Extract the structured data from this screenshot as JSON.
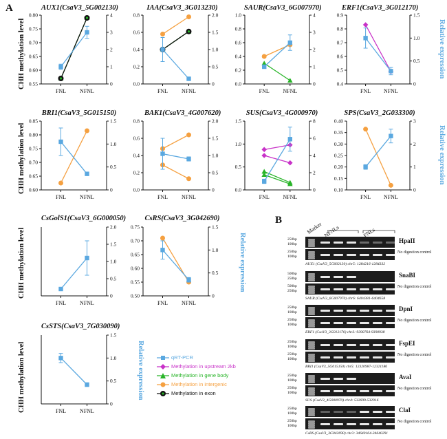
{
  "figure": {
    "panel_a_label": "A",
    "panel_b_label": "B",
    "left_axis_label": "CHH methylation level",
    "right_axis_label": "Relative expression"
  },
  "colors": {
    "qrt": "#5aa8e0",
    "upstream": "#c832c8",
    "genebody": "#28b428",
    "intergenic": "#f5a040",
    "exon": "#111111"
  },
  "legend": [
    {
      "key": "qrt",
      "label": "qRT-PCR",
      "marker": "square"
    },
    {
      "key": "upstream",
      "label": "Methylation in  upstream 2kb",
      "marker": "diamond"
    },
    {
      "key": "genebody",
      "label": "Methylation in gene body",
      "marker": "triangle"
    },
    {
      "key": "intergenic",
      "label": "Methylation in  intergenic",
      "marker": "circle"
    },
    {
      "key": "exon",
      "label": "Methylation in exon",
      "marker": "hexagon"
    }
  ],
  "chart_data": [
    {
      "type": "line",
      "title": "AUX1(CsaV3_5G002130)",
      "categories": [
        "FNL",
        "NFNL"
      ],
      "ylim": [
        0.55,
        0.8
      ],
      "yticks": [
        "0.55",
        "0.60",
        "0.65",
        "0.70",
        "0.75",
        "0.80"
      ],
      "y2lim": [
        0,
        4
      ],
      "y2ticks": [
        "0",
        "1",
        "2",
        "3",
        "4"
      ],
      "methylation": [
        {
          "key": "genebody",
          "values": [
            0.57,
            0.79
          ]
        },
        {
          "key": "exon",
          "values": [
            0.57,
            0.79
          ]
        }
      ],
      "expression": {
        "values": [
          1.0,
          3.0
        ],
        "err": [
          0.15,
          0.35
        ]
      }
    },
    {
      "type": "line",
      "title": "IAA(CsaV3_3G013230)",
      "categories": [
        "FNL",
        "NFNL"
      ],
      "ylim": [
        0,
        0.8
      ],
      "yticks": [
        "0.0",
        "0.2",
        "0.4",
        "0.6",
        "0.8"
      ],
      "y2lim": [
        0,
        2
      ],
      "y2ticks": [
        "0",
        "0.5",
        "1.0",
        "1.5",
        "2.0"
      ],
      "methylation": [
        {
          "key": "intergenic",
          "values": [
            0.58,
            0.78
          ]
        },
        {
          "key": "genebody",
          "values": [
            0.4,
            0.61
          ]
        },
        {
          "key": "exon",
          "values": [
            0.4,
            0.61
          ]
        }
      ],
      "expression": {
        "values": [
          1.0,
          0.15
        ],
        "err": [
          0.35,
          0.05
        ]
      }
    },
    {
      "type": "line",
      "title": "SAUR(CsaV3_6G007970)",
      "categories": [
        "FNL",
        "NFNL"
      ],
      "ylim": [
        0,
        1
      ],
      "yticks": [
        "0.0",
        "0.2",
        "0.4",
        "0.6",
        "0.8",
        "1.0"
      ],
      "y2lim": [
        0,
        4
      ],
      "y2ticks": [
        "0",
        "1",
        "2",
        "3",
        "4"
      ],
      "methylation": [
        {
          "key": "intergenic",
          "values": [
            0.4,
            0.57
          ]
        },
        {
          "key": "genebody",
          "values": [
            0.3,
            0.05
          ]
        }
      ],
      "expression": {
        "values": [
          1.0,
          2.4
        ],
        "err": [
          0.1,
          0.45
        ]
      }
    },
    {
      "type": "line",
      "title": "ERF1(CsaV3_3G012170)",
      "categories": [
        "FNL",
        "NFNL"
      ],
      "ylim": [
        0.4,
        0.9
      ],
      "yticks": [
        "0.4",
        "0.5",
        "0.6",
        "0.7",
        "0.8",
        "0.9"
      ],
      "y2lim": [
        0,
        1.5
      ],
      "y2ticks": [
        "0",
        "0.5",
        "1.0",
        "1.5"
      ],
      "methylation": [
        {
          "key": "upstream",
          "values": [
            0.83,
            0.49
          ]
        }
      ],
      "expression": {
        "values": [
          1.0,
          0.28
        ],
        "err": [
          0.22,
          0.08
        ]
      }
    },
    {
      "type": "line",
      "title": "BRI1(CsaV3_5G015150)",
      "categories": [
        "FNL",
        "NFNL"
      ],
      "ylim": [
        0.6,
        0.85
      ],
      "yticks": [
        "0.60",
        "0.65",
        "0.70",
        "0.75",
        "0.80",
        "0.85"
      ],
      "y2lim": [
        0,
        1.5
      ],
      "y2ticks": [
        "0",
        "0.5",
        "1.0",
        "1.5"
      ],
      "methylation": [
        {
          "key": "intergenic",
          "values": [
            0.625,
            0.815
          ]
        }
      ],
      "expression": {
        "values": [
          1.05,
          0.35
        ],
        "err": [
          0.3,
          0.03
        ]
      }
    },
    {
      "type": "line",
      "title": "BAK1(CsaV3_4G007620)",
      "categories": [
        "FNL",
        "NFNL"
      ],
      "ylim": [
        0,
        0.8
      ],
      "yticks": [
        "0.0",
        "0.2",
        "0.4",
        "0.6",
        "0.8"
      ],
      "y2lim": [
        0,
        2
      ],
      "y2ticks": [
        "0",
        "0.5",
        "1.0",
        "1.5",
        "2.0"
      ],
      "methylation": [
        {
          "key": "intergenic",
          "values": [
            0.48,
            0.64
          ]
        },
        {
          "key": "intergenic",
          "values": [
            0.29,
            0.13
          ]
        }
      ],
      "expression": {
        "values": [
          1.05,
          0.9
        ],
        "err": [
          0.45,
          0.06
        ]
      }
    },
    {
      "type": "line",
      "title": "SUS(CsaV3_4G000970)",
      "categories": [
        "FNL",
        "NFNL"
      ],
      "ylim": [
        0,
        1.5
      ],
      "yticks": [
        "0.0",
        "0.5",
        "1.0",
        "1.5"
      ],
      "y2lim": [
        0,
        8
      ],
      "y2ticks": [
        "0",
        "2",
        "4",
        "6",
        "8"
      ],
      "methylation": [
        {
          "key": "upstream",
          "values": [
            0.88,
            0.98
          ]
        },
        {
          "key": "upstream",
          "values": [
            0.75,
            0.59
          ]
        },
        {
          "key": "genebody",
          "values": [
            0.4,
            0.16
          ]
        },
        {
          "key": "genebody",
          "values": [
            0.33,
            0.13
          ]
        }
      ],
      "expression": {
        "values": [
          1.0,
          5.9
        ],
        "err": [
          0.25,
          1.4
        ]
      }
    },
    {
      "type": "line",
      "title": "SPS(CsaV3_2G033300)",
      "categories": [
        "FNL",
        "NFNL"
      ],
      "ylim": [
        0.1,
        0.4
      ],
      "yticks": [
        "0.10",
        "0.15",
        "0.20",
        "0.25",
        "0.30",
        "0.35",
        "0.40"
      ],
      "y2lim": [
        0,
        3
      ],
      "y2ticks": [
        "0",
        "1",
        "2",
        "3"
      ],
      "methylation": [
        {
          "key": "intergenic",
          "values": [
            0.365,
            0.12
          ]
        }
      ],
      "expression": {
        "values": [
          1.0,
          2.35
        ],
        "err": [
          0.1,
          0.3
        ]
      }
    },
    {
      "type": "line",
      "title": "CsGolS1(CsaV3_6G000050)",
      "categories": [
        "FNL",
        "NFNL"
      ],
      "ylim": null,
      "yticks": [],
      "y2lim": [
        0,
        2
      ],
      "y2ticks": [
        "0",
        "0.5",
        "1.0",
        "1.5",
        "2.0"
      ],
      "methylation": [],
      "expression": {
        "values": [
          0.2,
          1.1
        ],
        "err": [
          0.03,
          0.5
        ]
      }
    },
    {
      "type": "line",
      "title": "CsRS(CsaV3_3G042690)",
      "categories": [
        "FNL",
        "NFNL"
      ],
      "ylim": [
        0.5,
        0.75
      ],
      "yticks": [
        "0.50",
        "0.55",
        "0.60",
        "0.65",
        "0.70",
        "0.75"
      ],
      "y2lim": [
        0,
        1.5
      ],
      "y2ticks": [
        "0",
        "0.5",
        "1.0",
        "1.5"
      ],
      "methylation": [
        {
          "key": "intergenic",
          "values": [
            0.71,
            0.55
          ]
        }
      ],
      "expression": {
        "values": [
          1.0,
          0.35
        ],
        "err": [
          0.2,
          0.05
        ]
      }
    },
    {
      "type": "line",
      "title": "CsSTS(CsaV3_7G030090)",
      "categories": [
        "FNL",
        "NFNL"
      ],
      "ylim": null,
      "yticks": [],
      "y2lim": [
        0,
        1.5
      ],
      "y2ticks": [
        "0",
        "0.5",
        "1.0",
        "1.5"
      ],
      "methylation": [],
      "expression": {
        "values": [
          1.0,
          0.42
        ],
        "err": [
          0.1,
          0.04
        ]
      }
    }
  ],
  "gel": {
    "lane_headers": [
      "Marker",
      "NFNLs",
      "FNLs"
    ],
    "blocks": [
      {
        "enzyme": "HpaII",
        "caption": "AUX1 (CsaV3_5G002130)   chr5: 1284216-1284332",
        "rows": [
          {
            "m1": "250bp",
            "m2": "100bp",
            "label": ""
          },
          {
            "m1": "250bp",
            "m2": "100bp",
            "label": "No digestion control"
          }
        ],
        "pattern": "faint_fnl"
      },
      {
        "enzyme": "SnaBI",
        "caption": "SAUR (CsaV3_6G007970)   chr6: 6404381-6404658",
        "rows": [
          {
            "m1": "500bp",
            "m2": "250bp",
            "label": ""
          },
          {
            "m1": "500bp",
            "m2": "250bp",
            "label": "No digestion control"
          }
        ],
        "pattern": "nfnl_only"
      },
      {
        "enzyme": "DpnI",
        "caption": "ERF1 (CsaV3_3G012170)   chr3: 9390764-9390938",
        "rows": [
          {
            "m1": "250bp",
            "m2": "100bp",
            "label": ""
          },
          {
            "m1": "250bp",
            "m2": "100bp",
            "label": "No digestion control"
          }
        ],
        "pattern": "all"
      },
      {
        "enzyme": "FspEI",
        "caption": "BRI1 (CsaV3_5G015150)   chr5: 12320987-12321186",
        "rows": [
          {
            "m1": "250bp",
            "m2": "100bp",
            "label": ""
          },
          {
            "m1": "250bp",
            "m2": "100bp",
            "label": "No digestion control"
          }
        ],
        "pattern": "all"
      },
      {
        "enzyme": "AvaI",
        "caption": "SUS (CsaV3_4G000970)   chr4: 532699-532916",
        "rows": [
          {
            "m1": "250bp",
            "m2": "100bp",
            "label": ""
          },
          {
            "m1": "250bp",
            "m2": "100bp",
            "label": "No digestion control"
          }
        ],
        "pattern": "nfnl_only"
      },
      {
        "enzyme": "ClaI",
        "caption": "CsRS (CsaV3_3G042690)   chr3: 34640164-34640291",
        "rows": [
          {
            "m1": "250bp",
            "m2": "100bp",
            "label": ""
          },
          {
            "m1": "250bp",
            "m2": "100bp",
            "label": "No digestion control"
          }
        ],
        "pattern": "faint_nfnl"
      }
    ]
  }
}
